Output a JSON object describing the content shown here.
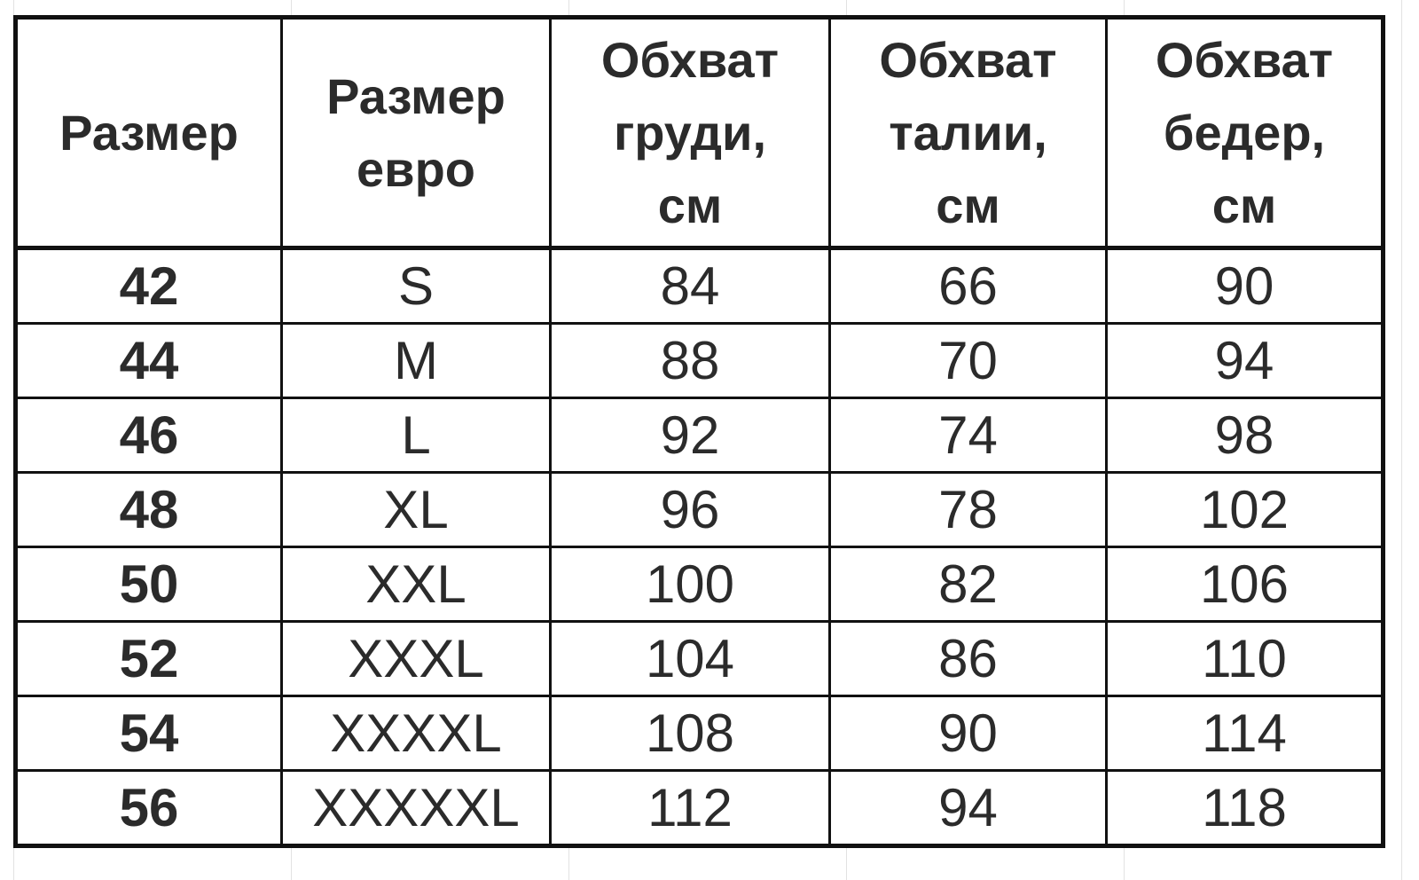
{
  "table": {
    "headers": [
      [
        "Размер"
      ],
      [
        "Размер",
        "евро"
      ],
      [
        "Обхват",
        "груди,",
        "см"
      ],
      [
        "Обхват",
        "талии,",
        "см"
      ],
      [
        "Обхват",
        "бедер,",
        "см"
      ]
    ],
    "rows": [
      [
        "42",
        "S",
        "84",
        "66",
        "90"
      ],
      [
        "44",
        "M",
        "88",
        "70",
        "94"
      ],
      [
        "46",
        "L",
        "92",
        "74",
        "98"
      ],
      [
        "48",
        "XL",
        "96",
        "78",
        "102"
      ],
      [
        "50",
        "XXL",
        "100",
        "82",
        "106"
      ],
      [
        "52",
        "XXXL",
        "104",
        "86",
        "110"
      ],
      [
        "54",
        "XXXXL",
        "108",
        "90",
        "114"
      ],
      [
        "56",
        "XXXXXL",
        "112",
        "94",
        "118"
      ]
    ]
  }
}
